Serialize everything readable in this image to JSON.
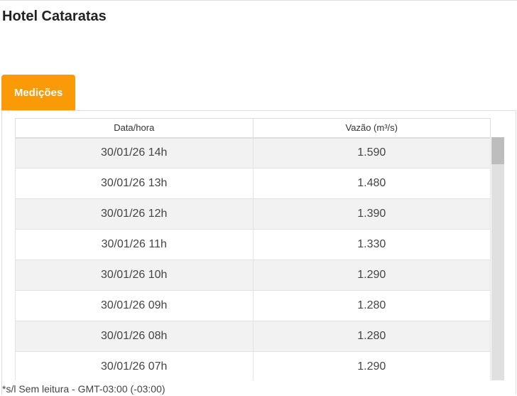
{
  "header": {
    "title": "Hotel Cataratas"
  },
  "tabs": [
    {
      "label": "Medições",
      "active": true
    }
  ],
  "accent_color": "#fb9a07",
  "table": {
    "columns": [
      "Data/hora",
      "Vazão (m³/s)"
    ],
    "rows": [
      [
        "30/01/26 14h",
        "1.590"
      ],
      [
        "30/01/26 13h",
        "1.480"
      ],
      [
        "30/01/26 12h",
        "1.390"
      ],
      [
        "30/01/26 11h",
        "1.330"
      ],
      [
        "30/01/26 10h",
        "1.290"
      ],
      [
        "30/01/26 09h",
        "1.280"
      ],
      [
        "30/01/26 08h",
        "1.280"
      ],
      [
        "30/01/26 07h",
        "1.290"
      ]
    ]
  },
  "footer": {
    "note": "*s/l Sem leitura - GMT-03:00 (-03:00)"
  }
}
